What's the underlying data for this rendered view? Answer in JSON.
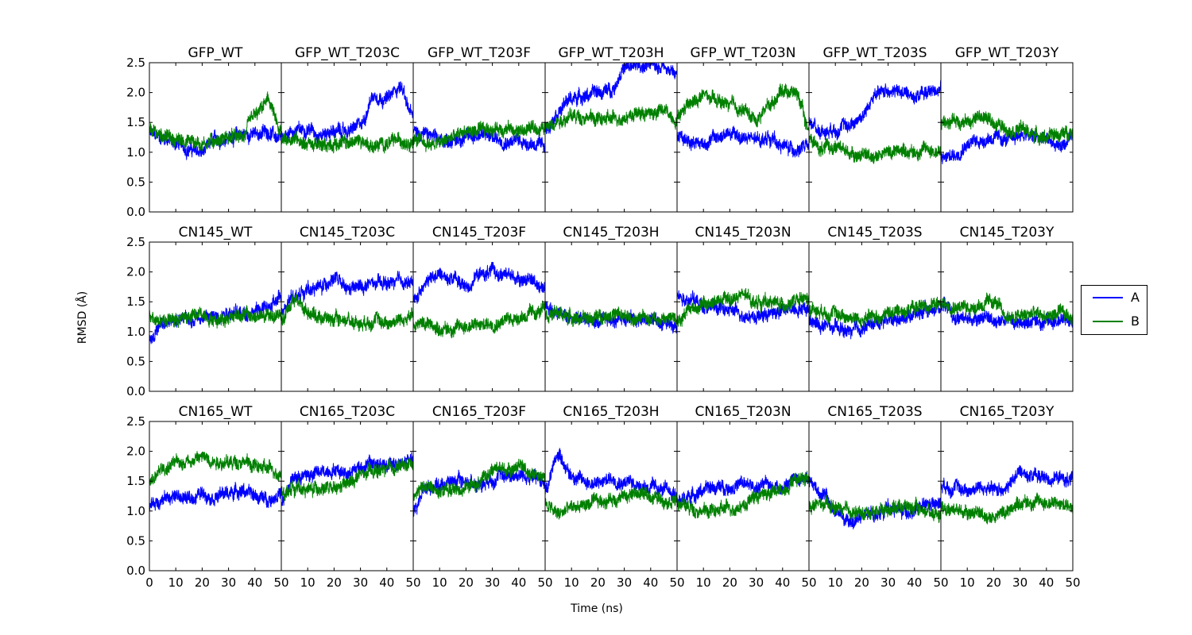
{
  "chart_data": {
    "type": "line",
    "ylabel": "RMSD (Å)",
    "xlabel": "Time (ns)",
    "xlim": [
      0,
      50
    ],
    "ylim": [
      0,
      2.5
    ],
    "xticks": [
      0,
      10,
      20,
      30,
      40,
      50
    ],
    "xtick_labels": [
      "0",
      "10",
      "20",
      "30",
      "40",
      "50"
    ],
    "yticks": [
      0.0,
      0.5,
      1.0,
      1.5,
      2.0,
      2.5
    ],
    "ytick_labels": [
      "0.0",
      "0.5",
      "1.0",
      "1.5",
      "2.0",
      "2.5"
    ],
    "grid": false,
    "legend_position": "right",
    "series_styles": [
      {
        "name": "A",
        "color": "#0000ff"
      },
      {
        "name": "B",
        "color": "#008000"
      }
    ],
    "panels": [
      {
        "title": "GFP_WT",
        "A": [
          1.3,
          1.25,
          1.15,
          1.05,
          1.0,
          1.2,
          1.25,
          1.3,
          1.3,
          1.35,
          1.2
        ],
        "B": [
          1.35,
          1.3,
          1.2,
          1.2,
          1.15,
          1.2,
          1.25,
          1.25,
          1.6,
          1.85,
          1.3
        ]
      },
      {
        "title": "GFP_WT_T203C",
        "A": [
          1.3,
          1.35,
          1.4,
          1.3,
          1.35,
          1.35,
          1.45,
          1.95,
          1.9,
          2.1,
          1.6
        ],
        "B": [
          1.2,
          1.25,
          1.15,
          1.1,
          1.15,
          1.15,
          1.2,
          1.1,
          1.15,
          1.2,
          1.2
        ]
      },
      {
        "title": "GFP_WT_T203F",
        "A": [
          1.35,
          1.3,
          1.2,
          1.2,
          1.25,
          1.3,
          1.25,
          1.2,
          1.2,
          1.15,
          1.1
        ],
        "B": [
          1.2,
          1.15,
          1.15,
          1.25,
          1.35,
          1.35,
          1.4,
          1.4,
          1.35,
          1.4,
          1.4
        ]
      },
      {
        "title": "GFP_WT_T203H",
        "A": [
          1.4,
          1.7,
          1.9,
          1.95,
          2.0,
          2.05,
          2.4,
          2.45,
          2.45,
          2.45,
          2.3
        ],
        "B": [
          1.4,
          1.55,
          1.6,
          1.6,
          1.55,
          1.55,
          1.6,
          1.65,
          1.65,
          1.7,
          1.55
        ]
      },
      {
        "title": "GFP_WT_T203N",
        "A": [
          1.3,
          1.2,
          1.15,
          1.25,
          1.3,
          1.25,
          1.2,
          1.25,
          1.1,
          1.05,
          1.1
        ],
        "B": [
          1.6,
          1.8,
          1.95,
          1.85,
          1.8,
          1.7,
          1.55,
          1.8,
          2.05,
          2.0,
          1.4
        ]
      },
      {
        "title": "GFP_WT_T203S",
        "A": [
          1.5,
          1.35,
          1.4,
          1.45,
          1.6,
          1.95,
          2.05,
          2.0,
          1.95,
          2.0,
          2.1
        ],
        "B": [
          1.2,
          1.05,
          1.1,
          1.0,
          0.95,
          0.95,
          1.0,
          1.05,
          1.0,
          1.05,
          1.0
        ]
      },
      {
        "title": "GFP_WT_T203Y",
        "A": [
          0.9,
          0.95,
          1.15,
          1.2,
          1.25,
          1.2,
          1.3,
          1.25,
          1.2,
          1.1,
          1.2
        ],
        "B": [
          1.5,
          1.55,
          1.5,
          1.6,
          1.5,
          1.4,
          1.4,
          1.3,
          1.25,
          1.3,
          1.35
        ]
      },
      {
        "title": "CN145_WT",
        "A": [
          0.9,
          1.1,
          1.2,
          1.2,
          1.25,
          1.25,
          1.35,
          1.3,
          1.35,
          1.4,
          1.55
        ],
        "B": [
          1.3,
          1.2,
          1.2,
          1.25,
          1.3,
          1.2,
          1.25,
          1.3,
          1.25,
          1.25,
          1.3
        ]
      },
      {
        "title": "CN145_T203C",
        "A": [
          1.3,
          1.6,
          1.7,
          1.75,
          1.9,
          1.7,
          1.75,
          1.8,
          1.8,
          1.85,
          1.8
        ],
        "B": [
          1.2,
          1.55,
          1.35,
          1.25,
          1.2,
          1.2,
          1.15,
          1.2,
          1.15,
          1.2,
          1.25
        ]
      },
      {
        "title": "CN145_T203F",
        "A": [
          1.5,
          1.85,
          1.95,
          1.9,
          1.75,
          1.95,
          2.0,
          1.95,
          1.9,
          1.85,
          1.75
        ],
        "B": [
          1.1,
          1.15,
          1.05,
          1.05,
          1.1,
          1.1,
          1.15,
          1.2,
          1.25,
          1.3,
          1.35
        ]
      },
      {
        "title": "CN145_T203H",
        "A": [
          1.45,
          1.3,
          1.2,
          1.2,
          1.15,
          1.2,
          1.25,
          1.2,
          1.2,
          1.15,
          1.15
        ],
        "B": [
          1.3,
          1.3,
          1.25,
          1.2,
          1.25,
          1.3,
          1.25,
          1.2,
          1.25,
          1.2,
          1.25
        ]
      },
      {
        "title": "CN145_T203N",
        "A": [
          1.6,
          1.55,
          1.45,
          1.4,
          1.35,
          1.3,
          1.25,
          1.3,
          1.35,
          1.4,
          1.4
        ],
        "B": [
          1.2,
          1.4,
          1.45,
          1.5,
          1.55,
          1.6,
          1.5,
          1.5,
          1.45,
          1.5,
          1.55
        ]
      },
      {
        "title": "CN145_T203S",
        "A": [
          1.15,
          1.1,
          1.05,
          1.0,
          1.05,
          1.15,
          1.2,
          1.25,
          1.3,
          1.35,
          1.4
        ],
        "B": [
          1.4,
          1.35,
          1.3,
          1.25,
          1.2,
          1.25,
          1.3,
          1.35,
          1.4,
          1.45,
          1.45
        ]
      },
      {
        "title": "CN145_T203Y",
        "A": [
          1.5,
          1.25,
          1.2,
          1.25,
          1.2,
          1.2,
          1.15,
          1.2,
          1.15,
          1.2,
          1.15
        ],
        "B": [
          1.5,
          1.45,
          1.4,
          1.45,
          1.5,
          1.25,
          1.25,
          1.3,
          1.25,
          1.3,
          1.25
        ]
      },
      {
        "title": "CN165_WT",
        "A": [
          1.1,
          1.2,
          1.25,
          1.2,
          1.3,
          1.25,
          1.3,
          1.35,
          1.25,
          1.2,
          1.3
        ],
        "B": [
          1.45,
          1.7,
          1.8,
          1.85,
          1.9,
          1.85,
          1.8,
          1.85,
          1.75,
          1.7,
          1.65
        ]
      },
      {
        "title": "CN165_T203C",
        "A": [
          1.2,
          1.55,
          1.6,
          1.65,
          1.7,
          1.65,
          1.75,
          1.8,
          1.75,
          1.8,
          1.85
        ],
        "B": [
          1.3,
          1.4,
          1.35,
          1.4,
          1.35,
          1.45,
          1.6,
          1.65,
          1.7,
          1.75,
          1.8
        ]
      },
      {
        "title": "CN165_T203F",
        "A": [
          1.0,
          1.4,
          1.45,
          1.5,
          1.5,
          1.45,
          1.55,
          1.6,
          1.6,
          1.55,
          1.5
        ],
        "B": [
          1.3,
          1.4,
          1.35,
          1.35,
          1.4,
          1.45,
          1.7,
          1.7,
          1.75,
          1.65,
          1.55
        ]
      },
      {
        "title": "CN165_T203H",
        "A": [
          1.4,
          1.95,
          1.6,
          1.5,
          1.45,
          1.55,
          1.5,
          1.45,
          1.4,
          1.35,
          1.3
        ],
        "B": [
          1.1,
          0.95,
          1.05,
          1.1,
          1.15,
          1.2,
          1.25,
          1.3,
          1.25,
          1.2,
          1.2
        ]
      },
      {
        "title": "CN165_T203N",
        "A": [
          1.15,
          1.25,
          1.35,
          1.4,
          1.4,
          1.45,
          1.4,
          1.45,
          1.4,
          1.55,
          1.6
        ],
        "B": [
          1.15,
          1.05,
          1.0,
          1.0,
          1.05,
          1.1,
          1.25,
          1.3,
          1.35,
          1.55,
          1.6
        ]
      },
      {
        "title": "CN165_T203S",
        "A": [
          1.5,
          1.3,
          1.0,
          0.8,
          0.9,
          0.95,
          1.05,
          1.0,
          1.0,
          1.1,
          1.1
        ],
        "B": [
          1.1,
          1.1,
          1.05,
          1.0,
          0.95,
          1.0,
          1.05,
          1.1,
          1.05,
          1.0,
          0.95
        ]
      },
      {
        "title": "CN165_T203Y",
        "A": [
          1.45,
          1.4,
          1.35,
          1.4,
          1.35,
          1.4,
          1.65,
          1.6,
          1.55,
          1.55,
          1.5
        ],
        "B": [
          1.1,
          1.0,
          1.0,
          0.95,
          0.9,
          1.0,
          1.15,
          1.15,
          1.15,
          1.1,
          1.1
        ]
      }
    ]
  },
  "legend": {
    "items": [
      {
        "label": "A",
        "color": "#0000ff"
      },
      {
        "label": "B",
        "color": "#008000"
      }
    ]
  }
}
